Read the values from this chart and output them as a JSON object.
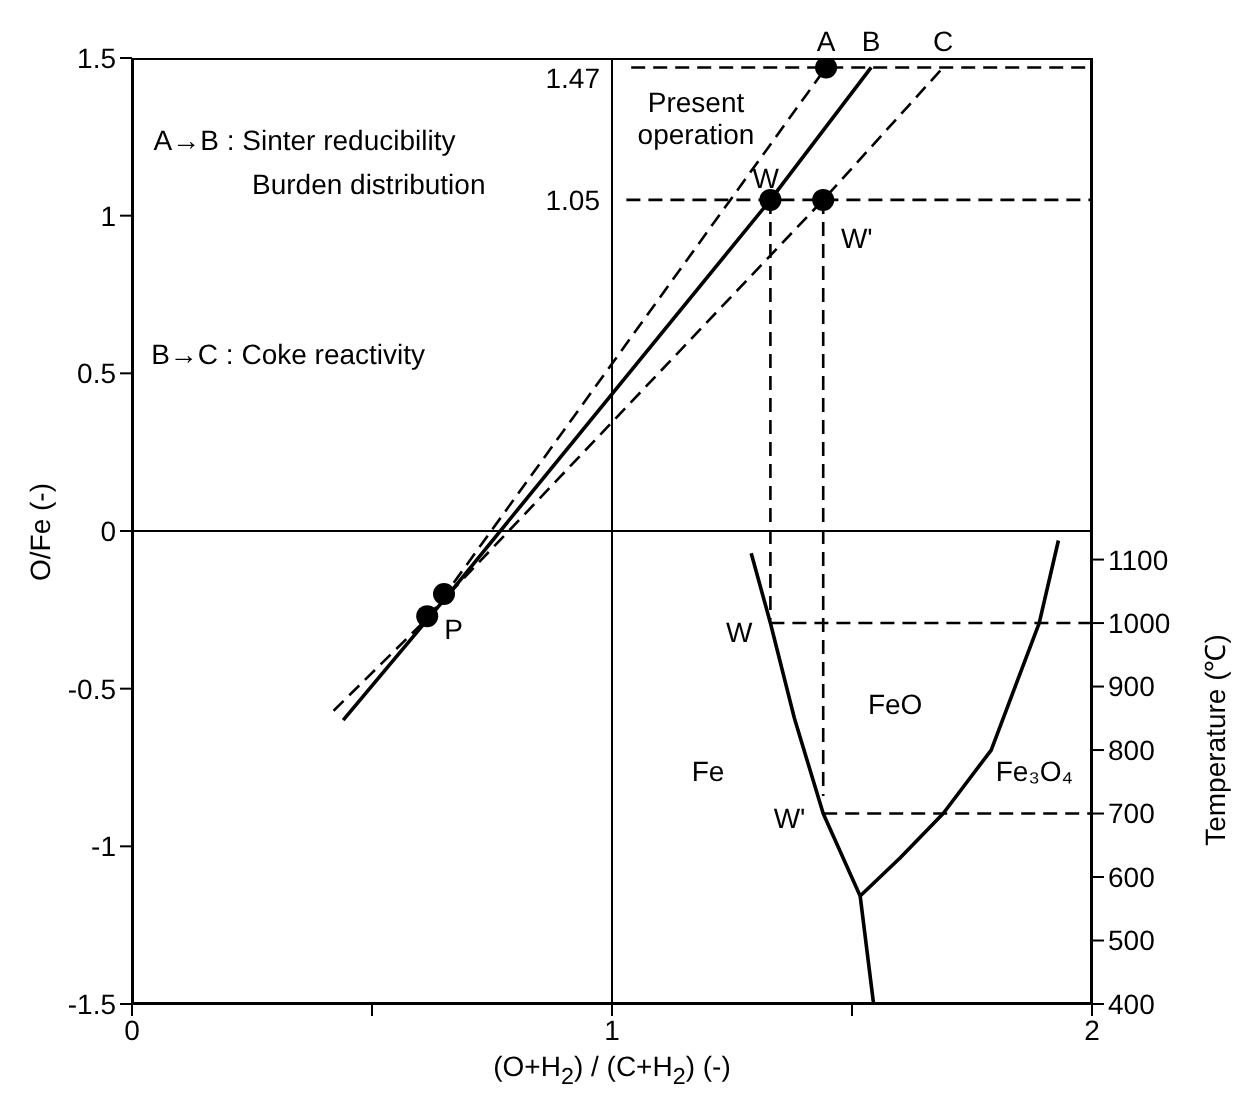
{
  "chart_data": {
    "type": "line",
    "xlabel": "(O+H$_{2}$) / (C+H$_{2}$) (-)",
    "ylabel": "O/Fe (-)",
    "y2label": "Temperature (℃)",
    "xlim": [
      0,
      2
    ],
    "xticks": [
      0,
      {
        "value": 0.5,
        "label": null
      },
      1,
      {
        "value": 1.5,
        "label": null
      },
      2
    ],
    "ylim": [
      -1.5,
      1.5
    ],
    "yticks": [
      -1.5,
      -1.0,
      -0.5,
      0,
      0.5,
      1.0,
      1.5
    ],
    "y2lim": [
      400,
      1890
    ],
    "y2ticks": [
      400,
      500,
      600,
      700,
      800,
      900,
      1000,
      1100
    ],
    "grid": false,
    "legend": false,
    "ref_lines": [
      {
        "axis": "x",
        "value": 1,
        "line_style": "solid",
        "color": "#000000"
      },
      {
        "axis": "y",
        "value": 0,
        "line_style": "solid",
        "color": "#000000"
      }
    ],
    "series": [
      {
        "name": "A",
        "line_style": "dashed",
        "color": "#000000",
        "x": [
          0.42,
          0.62,
          1.446
        ],
        "values": [
          -0.57,
          -0.27,
          1.47
        ]
      },
      {
        "name": "B",
        "line_style": "solid",
        "color": "#000000",
        "x": [
          0.44,
          0.66,
          1.33,
          1.54
        ],
        "values": [
          -0.6,
          -0.2,
          1.05,
          1.47
        ]
      },
      {
        "name": "C",
        "line_style": "dashed",
        "color": "#000000",
        "x": [
          0.66,
          1.44,
          1.69
        ],
        "values": [
          -0.2,
          1.05,
          1.47
        ]
      },
      {
        "type": "line",
        "line_style": "dashed",
        "color": "#000000",
        "x": [
          1.04,
          2
        ],
        "values": [
          1.47,
          1.47
        ]
      },
      {
        "type": "line",
        "line_style": "dashed",
        "color": "#000000",
        "x": [
          1.03,
          2
        ],
        "values": [
          1.05,
          1.05
        ]
      },
      {
        "type": "line",
        "line_style": "dashed",
        "color": "#000000",
        "x": [
          1.33,
          1.33
        ],
        "values": [
          1.05,
          -0.28
        ]
      },
      {
        "type": "line",
        "line_style": "dashed",
        "color": "#000000",
        "x": [
          1.44,
          1.44
        ],
        "values": [
          1.05,
          -0.84
        ]
      },
      {
        "type": "line",
        "axis": "y2",
        "line_style": "dashed",
        "color": "#000000",
        "x": [
          1.33,
          2
        ],
        "values": [
          1000,
          1000
        ]
      },
      {
        "type": "line",
        "axis": "y2",
        "line_style": "dashed",
        "color": "#000000",
        "x": [
          1.44,
          2
        ],
        "values": [
          700,
          700
        ]
      },
      {
        "type": "line",
        "axis": "y2",
        "line_style": "solid",
        "color": "#000000",
        "x": [
          1.29,
          1.33,
          1.38,
          1.44,
          1.517,
          1.545
        ],
        "values": [
          1110,
          1000,
          850,
          700,
          570,
          400
        ]
      },
      {
        "type": "line",
        "axis": "y2",
        "line_style": "solid",
        "color": "#000000",
        "x": [
          1.517,
          1.6,
          1.69,
          1.79,
          1.89,
          1.93
        ],
        "values": [
          570,
          630,
          700,
          800,
          1000,
          1130
        ]
      },
      {
        "type": "scatter",
        "marker": "circle",
        "color": "#000000",
        "x": [
          1.446,
          1.33,
          1.44,
          0.615,
          0.65
        ],
        "values": [
          1.47,
          1.05,
          1.05,
          -0.27,
          -0.2
        ]
      }
    ],
    "annotations": [
      "1.47",
      "1.05",
      "Present\noperation",
      "W",
      "W'",
      "P",
      "W",
      "W'",
      "A→B : Sinter reducibility",
      "Burden distribution",
      "B→C : Coke reactivity",
      "Fe",
      "FeO",
      "Fe₃O₄"
    ]
  }
}
